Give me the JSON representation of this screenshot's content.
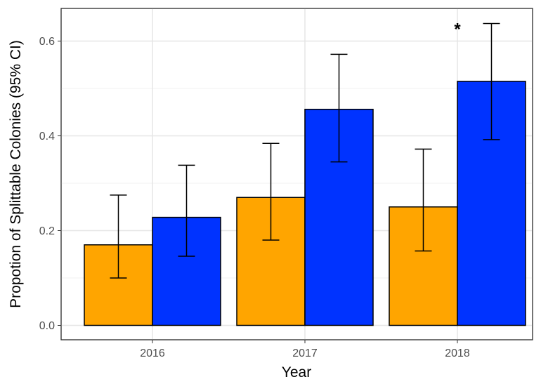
{
  "chart_data": {
    "type": "bar",
    "title": "",
    "xlabel": "Year",
    "ylabel": "Propotion of Splittable Colonies (95% CI)",
    "categories": [
      "2016",
      "2017",
      "2018"
    ],
    "ylim": [
      -0.03,
      0.67
    ],
    "yticks": [
      0.0,
      0.2,
      0.4,
      0.6
    ],
    "ytick_labels": [
      "0.0",
      "0.2",
      "0.4",
      "0.6"
    ],
    "grid": true,
    "legend": "none",
    "series": [
      {
        "color": "#FFA500",
        "values": [
          0.17,
          0.27,
          0.25
        ],
        "ci_low": [
          0.1,
          0.18,
          0.157
        ],
        "ci_high": [
          0.275,
          0.384,
          0.372
        ]
      },
      {
        "color": "#0033FF",
        "values": [
          0.228,
          0.456,
          0.515
        ],
        "ci_low": [
          0.146,
          0.345,
          0.392
        ],
        "ci_high": [
          0.338,
          0.572,
          0.637
        ]
      }
    ],
    "annotations": [
      {
        "text": "*",
        "category": "2018",
        "series": 1
      }
    ]
  }
}
